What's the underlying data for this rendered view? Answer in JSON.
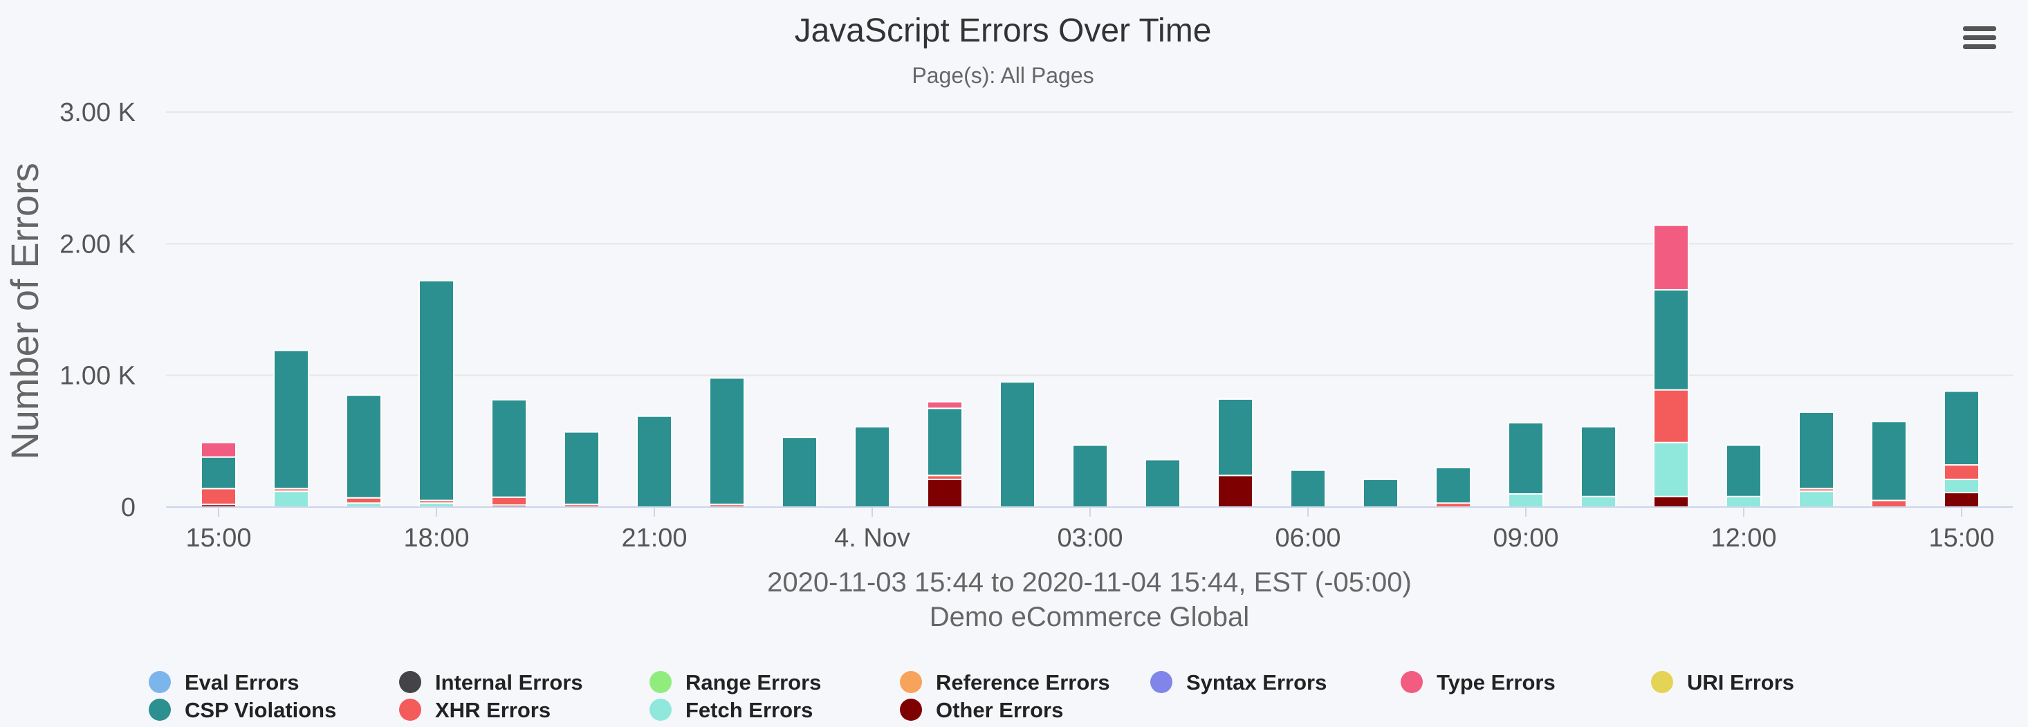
{
  "chart_data": {
    "type": "bar",
    "stacked": true,
    "title": "JavaScript Errors Over Time",
    "subtitle": "Page(s): All Pages",
    "ylabel": "Number of Errors",
    "xlabel_lines": [
      "2020-11-03 15:44 to 2020-11-04 15:44, EST (-05:00)",
      "Demo eCommerce Global"
    ],
    "ylim": [
      0,
      3000
    ],
    "y_ticks": [
      0,
      1000,
      2000,
      3000
    ],
    "y_tick_labels": [
      "0",
      "1.00 K",
      "2.00 K",
      "3.00 K"
    ],
    "x_tick_labels": [
      "15:00",
      "18:00",
      "21:00",
      "4. Nov",
      "03:00",
      "06:00",
      "09:00",
      "12:00",
      "15:00"
    ],
    "x_tick_index": [
      0,
      3,
      6,
      9,
      12,
      15,
      18,
      21,
      24
    ],
    "grid": true,
    "legend_position": "bottom",
    "categories": [
      "15:00",
      "16:00",
      "17:00",
      "18:00",
      "19:00",
      "20:00",
      "21:00",
      "22:00",
      "23:00",
      "00:00",
      "01:00",
      "02:00",
      "03:00",
      "04:00",
      "05:00",
      "06:00",
      "07:00",
      "08:00",
      "09:00",
      "10:00",
      "11:00",
      "12:00",
      "13:00",
      "14:00",
      "15:00"
    ],
    "series": [
      {
        "name": "Other Errors",
        "color": "#7f0000",
        "values": [
          20,
          0,
          0,
          0,
          15,
          0,
          0,
          0,
          0,
          0,
          210,
          0,
          0,
          0,
          240,
          0,
          0,
          0,
          0,
          0,
          80,
          0,
          0,
          0,
          110
        ]
      },
      {
        "name": "Fetch Errors",
        "color": "#90e8dc",
        "values": [
          0,
          120,
          30,
          30,
          0,
          0,
          0,
          0,
          0,
          0,
          0,
          0,
          0,
          0,
          0,
          0,
          0,
          0,
          100,
          80,
          410,
          80,
          120,
          0,
          100
        ]
      },
      {
        "name": "XHR Errors",
        "color": "#f45b5b",
        "values": [
          120,
          20,
          40,
          20,
          60,
          20,
          0,
          20,
          0,
          0,
          30,
          0,
          0,
          0,
          0,
          0,
          0,
          30,
          0,
          0,
          400,
          0,
          20,
          50,
          110
        ]
      },
      {
        "name": "CSP Violations",
        "color": "#2b908f",
        "values": [
          240,
          1050,
          780,
          1670,
          740,
          550,
          690,
          960,
          530,
          610,
          510,
          950,
          470,
          360,
          580,
          280,
          210,
          270,
          540,
          530,
          760,
          390,
          580,
          600,
          560
        ]
      },
      {
        "name": "Type Errors",
        "color": "#f15c80",
        "values": [
          110,
          0,
          0,
          0,
          0,
          0,
          0,
          0,
          0,
          0,
          50,
          0,
          0,
          0,
          0,
          0,
          0,
          0,
          0,
          0,
          490,
          0,
          0,
          0,
          0
        ]
      },
      {
        "name": "Eval Errors",
        "color": "#7cb5ec",
        "values": [
          0,
          0,
          0,
          0,
          0,
          0,
          0,
          0,
          0,
          0,
          0,
          0,
          0,
          0,
          0,
          0,
          0,
          0,
          0,
          0,
          0,
          0,
          0,
          0,
          0
        ]
      },
      {
        "name": "Internal Errors",
        "color": "#434348",
        "values": [
          0,
          0,
          0,
          0,
          0,
          0,
          0,
          0,
          0,
          0,
          0,
          0,
          0,
          0,
          0,
          0,
          0,
          0,
          0,
          0,
          0,
          0,
          0,
          0,
          0
        ]
      },
      {
        "name": "Range Errors",
        "color": "#90ed7d",
        "values": [
          0,
          0,
          0,
          0,
          0,
          0,
          0,
          0,
          0,
          0,
          0,
          0,
          0,
          0,
          0,
          0,
          0,
          0,
          0,
          0,
          0,
          0,
          0,
          0,
          0
        ]
      },
      {
        "name": "Reference Errors",
        "color": "#f7a35c",
        "values": [
          0,
          0,
          0,
          0,
          0,
          0,
          0,
          0,
          0,
          0,
          0,
          0,
          0,
          0,
          0,
          0,
          0,
          0,
          0,
          0,
          0,
          0,
          0,
          0,
          0
        ]
      },
      {
        "name": "Syntax Errors",
        "color": "#8085e9",
        "values": [
          0,
          0,
          0,
          0,
          0,
          0,
          0,
          0,
          0,
          0,
          0,
          0,
          0,
          0,
          0,
          0,
          0,
          0,
          0,
          0,
          0,
          0,
          0,
          0,
          0
        ]
      },
      {
        "name": "URI Errors",
        "color": "#e4d354",
        "values": [
          0,
          0,
          0,
          0,
          0,
          0,
          0,
          0,
          0,
          0,
          0,
          0,
          0,
          0,
          0,
          0,
          0,
          0,
          0,
          0,
          0,
          0,
          0,
          0,
          0
        ]
      }
    ],
    "legend": [
      {
        "name": "Eval Errors",
        "color": "#7cb5ec"
      },
      {
        "name": "Internal Errors",
        "color": "#434348"
      },
      {
        "name": "Range Errors",
        "color": "#90ed7d"
      },
      {
        "name": "Reference Errors",
        "color": "#f7a35c"
      },
      {
        "name": "Syntax Errors",
        "color": "#8085e9"
      },
      {
        "name": "Type Errors",
        "color": "#f15c80"
      },
      {
        "name": "URI Errors",
        "color": "#e4d354"
      },
      {
        "name": "CSP Violations",
        "color": "#2b908f"
      },
      {
        "name": "XHR Errors",
        "color": "#f45b5b"
      },
      {
        "name": "Fetch Errors",
        "color": "#90e8dc"
      },
      {
        "name": "Other Errors",
        "color": "#7f0000"
      }
    ]
  },
  "menu": {
    "icon": "hamburger-menu-icon"
  }
}
